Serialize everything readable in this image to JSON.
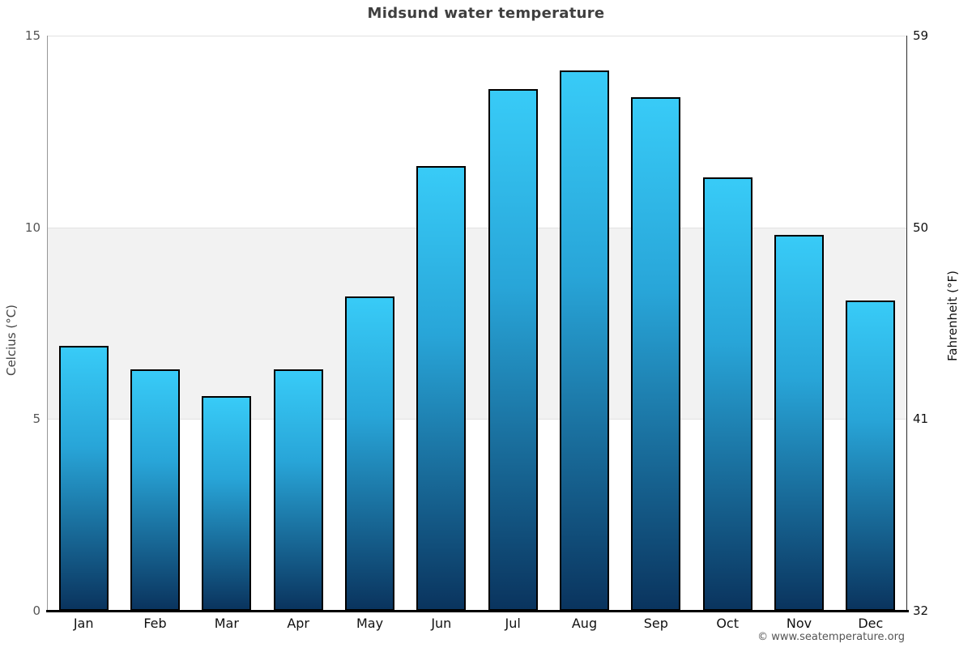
{
  "title": "Midsund water temperature",
  "footer": "© www.seatemperature.org",
  "chart_data": {
    "type": "bar",
    "title": "Midsund water temperature",
    "categories": [
      "Jan",
      "Feb",
      "Mar",
      "Apr",
      "May",
      "Jun",
      "Jul",
      "Aug",
      "Sep",
      "Oct",
      "Nov",
      "Dec"
    ],
    "values": [
      6.9,
      6.3,
      5.6,
      6.3,
      8.2,
      11.6,
      13.6,
      14.1,
      13.4,
      11.3,
      9.8,
      8.1
    ],
    "xlabel": "",
    "ylabel_left": "Celcius (°C)",
    "ylabel_right": "Fahrenheit (°F)",
    "ylim": [
      0,
      15
    ],
    "yticks_left": [
      0,
      5,
      10,
      15
    ],
    "yticks_right": [
      32,
      41,
      50,
      59
    ],
    "shaded_band": [
      5,
      10
    ],
    "grid": "horizontal",
    "legend": "none",
    "colors": {
      "bar_top": "#38cbf7",
      "bar_mid": "#28a5d8",
      "bar_bottom": "#0a345e",
      "bar_border": "#000000",
      "band": "#f2f2f2",
      "gridline": "#e2e2e2",
      "title": "#3f3f3f"
    }
  }
}
